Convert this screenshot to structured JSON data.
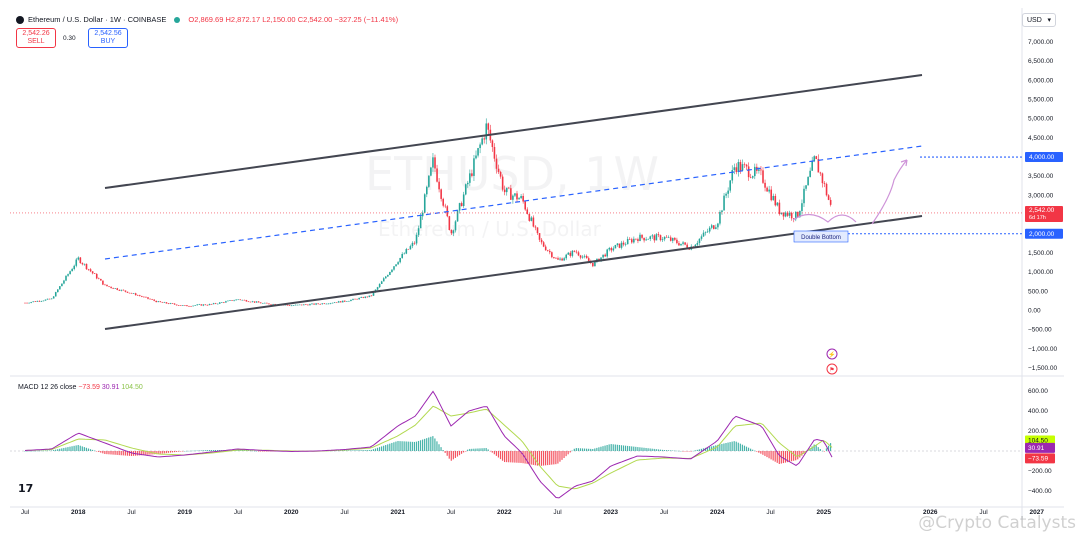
{
  "header": {
    "title": "Ethereum / U.S. Dollar · 1W · COINBASE",
    "open": "O2,869.69",
    "high": "H2,872.17",
    "low": "L2,150.00",
    "close": "C2,542.00",
    "change": "−327.25 (−11.41%)"
  },
  "trade": {
    "sell_price": "2,542.26",
    "sell_label": "SELL",
    "spread": "0.30",
    "buy_price": "2,542.56",
    "buy_label": "BUY"
  },
  "currency_selector": "USD",
  "watermark": {
    "symbol": "ETHUSD, 1W",
    "name": "Ethereum / U.S. Dollar"
  },
  "price_axis": {
    "ticks": [
      "7,000.00",
      "6,500.00",
      "6,000.00",
      "5,500.00",
      "5,000.00",
      "4,500.00",
      "4,000.00",
      "3,500.00",
      "3,000.00",
      "2,500.00",
      "2,000.00",
      "1,500.00",
      "1,000.00",
      "500.00",
      "0.00",
      "−500.00",
      "−1,000.00",
      "−1,500.00"
    ],
    "current_price": "2,542.00",
    "countdown": "6d 17h",
    "target_label": "4,000.00",
    "support_label": "2,000.00"
  },
  "macd": {
    "label": "MACD 12 26 close",
    "macd_value": "−73.59",
    "signal_value": "30.91",
    "hist_value": "104.50",
    "axis_ticks": [
      "600.00",
      "400.00",
      "200.00",
      "−200.00",
      "−400.00"
    ],
    "badge_hist": "104.50",
    "badge_signal": "30.91",
    "badge_macd": "−73.59"
  },
  "annotation_double_bottom": "Double Bottom",
  "time_axis": [
    "Jul",
    "2018",
    "Jul",
    "2019",
    "Jul",
    "2020",
    "Jul",
    "2021",
    "Jul",
    "2022",
    "Jul",
    "2023",
    "Jul",
    "2024",
    "Jul",
    "2025",
    "2026",
    "Jul",
    "2027"
  ],
  "colors": {
    "up": "#26a69a",
    "down": "#f23645",
    "channel": "#434651",
    "dashed": "#2962ff",
    "macd": "#9c27b0",
    "signal": "#b2d950",
    "projection": "#ce93d8"
  },
  "tv_logo": "17",
  "credit": "@Crypto Catalysts",
  "chart_data": [
    {
      "type": "line",
      "title": "Ethereum / U.S. Dollar · 1W · COINBASE",
      "xlabel": "",
      "ylabel": "",
      "ylim": [
        -1500,
        7000
      ],
      "x": [
        "2017-07",
        "2017-10",
        "2018-01",
        "2018-04",
        "2018-07",
        "2018-10",
        "2019-01",
        "2019-04",
        "2019-07",
        "2019-10",
        "2020-01",
        "2020-04",
        "2020-07",
        "2020-10",
        "2021-01",
        "2021-03",
        "2021-05",
        "2021-07",
        "2021-09",
        "2021-11",
        "2022-01",
        "2022-03",
        "2022-05",
        "2022-07",
        "2022-09",
        "2022-11",
        "2023-01",
        "2023-04",
        "2023-07",
        "2023-10",
        "2024-01",
        "2024-03",
        "2024-06",
        "2024-08",
        "2024-10",
        "2024-12",
        "2025-01",
        "2025-02"
      ],
      "series": [
        {
          "values": [
            200,
            300,
            1350,
            650,
            450,
            220,
            120,
            160,
            290,
            180,
            130,
            170,
            240,
            380,
            1300,
            1800,
            3900,
            2000,
            3400,
            4800,
            3100,
            2900,
            1800,
            1300,
            1550,
            1200,
            1600,
            1900,
            1900,
            1650,
            2300,
            3800,
            3500,
            2600,
            2450,
            3950,
            3300,
            2542
          ]
        }
      ],
      "levels": {
        "target": 4000,
        "support": 2000,
        "current": 2542
      }
    },
    {
      "type": "bar",
      "title": "MACD 12 26 close",
      "ylim": [
        -500,
        650
      ],
      "x": [
        "2017-07",
        "2017-10",
        "2018-01",
        "2018-04",
        "2018-07",
        "2018-10",
        "2019-01",
        "2019-04",
        "2019-07",
        "2019-10",
        "2020-01",
        "2020-04",
        "2020-07",
        "2020-10",
        "2021-01",
        "2021-03",
        "2021-05",
        "2021-07",
        "2021-09",
        "2021-11",
        "2022-01",
        "2022-03",
        "2022-05",
        "2022-07",
        "2022-09",
        "2022-11",
        "2023-01",
        "2023-04",
        "2023-07",
        "2023-10",
        "2024-01",
        "2024-03",
        "2024-06",
        "2024-08",
        "2024-10",
        "2024-12",
        "2025-01",
        "2025-02"
      ],
      "series": [
        {
          "values": [
            5,
            20,
            180,
            80,
            -20,
            -60,
            -40,
            -10,
            20,
            5,
            -5,
            0,
            15,
            40,
            250,
            350,
            600,
            250,
            400,
            450,
            150,
            -20,
            -300,
            -480,
            -350,
            -300,
            -150,
            -50,
            -60,
            -80,
            100,
            350,
            250,
            -50,
            -150,
            120,
            100,
            -73.59
          ]
        },
        {
          "values": [
            5,
            15,
            120,
            110,
            30,
            -30,
            -40,
            -20,
            10,
            8,
            0,
            -2,
            10,
            30,
            150,
            260,
            450,
            350,
            380,
            420,
            260,
            100,
            -150,
            -350,
            -380,
            -320,
            -220,
            -90,
            -70,
            -75,
            40,
            250,
            280,
            80,
            -60,
            50,
            110,
            30.91
          ]
        },
        {
          "values": [
            0,
            5,
            60,
            -30,
            -50,
            -30,
            0,
            10,
            10,
            -3,
            -5,
            2,
            5,
            10,
            100,
            90,
            150,
            -100,
            20,
            30,
            -110,
            -120,
            -150,
            -130,
            30,
            20,
            70,
            40,
            10,
            -5,
            60,
            100,
            -30,
            -130,
            -90,
            70,
            -10,
            104.5
          ]
        }
      ]
    }
  ]
}
